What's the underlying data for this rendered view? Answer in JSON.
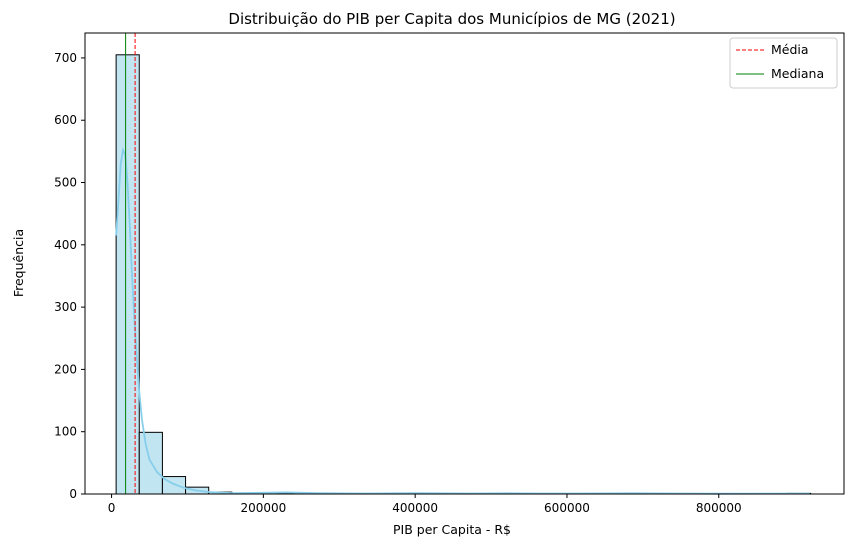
{
  "chart_data": {
    "type": "histogram",
    "title": "Distribuição do PIB per Capita dos Municípios de MG (2021)",
    "xlabel": "PIB per Capita - R$",
    "ylabel": "Frequência",
    "xlim": [
      -35000,
      965000
    ],
    "ylim": [
      0,
      740
    ],
    "xticks": [
      0,
      200000,
      400000,
      600000,
      800000
    ],
    "xtick_labels": [
      "0",
      "200000",
      "400000",
      "600000",
      "800000"
    ],
    "yticks": [
      0,
      100,
      200,
      300,
      400,
      500,
      600,
      700
    ],
    "ytick_labels": [
      "0",
      "100",
      "200",
      "300",
      "400",
      "500",
      "600",
      "700"
    ],
    "bin_start": 6000,
    "bin_width": 30500,
    "counts": [
      705,
      99,
      28,
      11,
      3,
      1,
      1,
      1,
      1,
      1,
      0,
      0,
      0,
      0,
      1,
      0,
      1,
      0,
      0,
      0,
      0,
      0,
      0,
      0,
      0,
      0,
      0,
      0,
      0,
      1
    ],
    "kde": {
      "x": [
        6000,
        9000,
        12000,
        15000,
        18000,
        21000,
        24000,
        27000,
        30000,
        33000,
        36000,
        40000,
        45000,
        50000,
        60000,
        70000,
        80000,
        95000,
        110000,
        130000,
        160000,
        200000,
        230000,
        270000,
        330000,
        400000,
        470000,
        520000,
        560000,
        620000,
        680000,
        740000,
        800000,
        860000,
        920000
      ],
      "y": [
        415,
        470,
        530,
        552,
        545,
        500,
        430,
        350,
        285,
        225,
        170,
        120,
        80,
        55,
        35,
        24,
        17,
        10,
        6,
        3,
        1.5,
        2,
        2.5,
        1.5,
        0.8,
        1.5,
        0.8,
        1.2,
        0.8,
        0.8,
        1.2,
        0.8,
        0.5,
        0.6,
        0.8
      ]
    },
    "mean": 31000,
    "median": 18500,
    "series": [
      {
        "name": "Média",
        "color": "#ff0000",
        "style": "dashed"
      },
      {
        "name": "Mediana",
        "color": "#008000",
        "style": "solid"
      }
    ],
    "legend_location": "upper right",
    "colors": {
      "bar_fill": "#c2e5f2",
      "bar_edge": "#000000",
      "kde": "#87ceeb"
    }
  }
}
